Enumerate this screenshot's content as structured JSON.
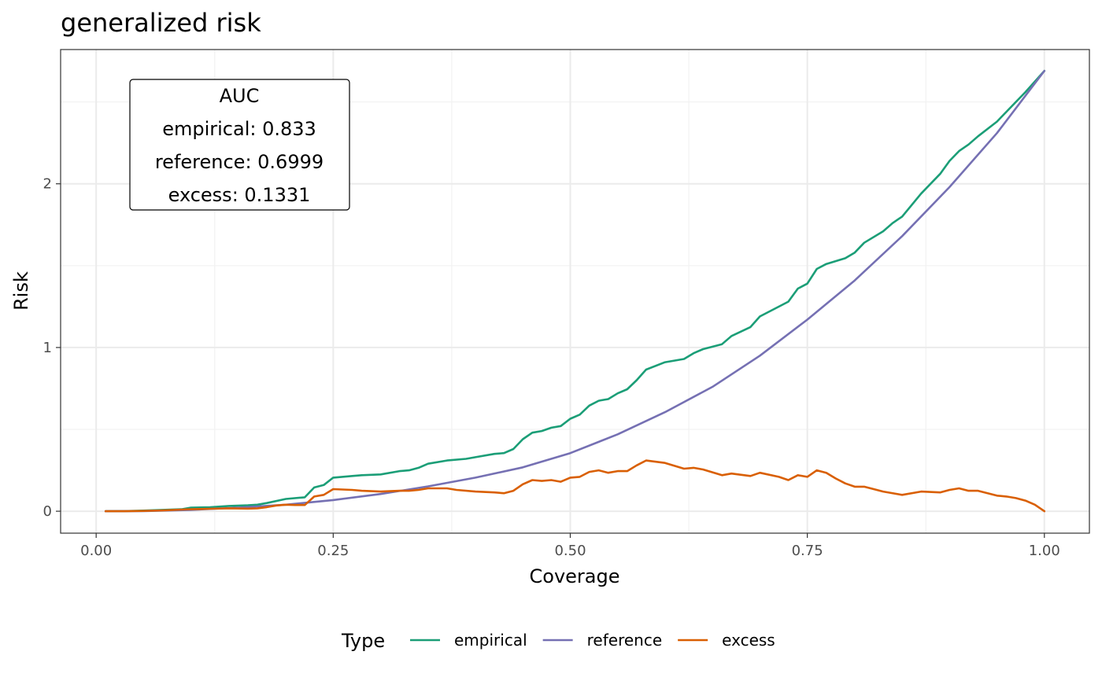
{
  "chart_data": {
    "type": "line",
    "title": "generalized risk",
    "xlabel": "Coverage",
    "ylabel": "Risk",
    "xlim": [
      -0.0375,
      1.0475
    ],
    "ylim": [
      -0.134,
      2.82
    ],
    "x_ticks": [
      0,
      0.25,
      0.5,
      0.75,
      1
    ],
    "x_tick_labels": [
      "0.00",
      "0.25",
      "0.50",
      "0.75",
      "1.00"
    ],
    "y_ticks": [
      0,
      1,
      2
    ],
    "y_tick_labels": [
      "0",
      "1",
      "2"
    ],
    "grid": true,
    "legend": {
      "title": "Type",
      "position": "bottom"
    },
    "annotation": {
      "lines": [
        "AUC",
        "empirical: 0.833",
        "reference: 0.6999",
        "excess: 0.1331"
      ]
    },
    "series": [
      {
        "name": "empirical",
        "color": "#1b9e77",
        "x": [
          0.01,
          0.03,
          0.05,
          0.07,
          0.09,
          0.1,
          0.12,
          0.14,
          0.16,
          0.17,
          0.18,
          0.2,
          0.22,
          0.23,
          0.24,
          0.25,
          0.27,
          0.28,
          0.3,
          0.32,
          0.33,
          0.34,
          0.35,
          0.37,
          0.39,
          0.4,
          0.42,
          0.43,
          0.44,
          0.45,
          0.46,
          0.47,
          0.48,
          0.49,
          0.5,
          0.51,
          0.52,
          0.53,
          0.54,
          0.55,
          0.56,
          0.57,
          0.58,
          0.6,
          0.62,
          0.63,
          0.64,
          0.66,
          0.67,
          0.69,
          0.7,
          0.72,
          0.73,
          0.74,
          0.75,
          0.76,
          0.77,
          0.79,
          0.8,
          0.81,
          0.83,
          0.84,
          0.85,
          0.87,
          0.89,
          0.9,
          0.91,
          0.92,
          0.93,
          0.95,
          0.96,
          0.98,
          1.0
        ],
        "y": [
          0,
          0.001,
          0.004,
          0.008,
          0.012,
          0.022,
          0.024,
          0.032,
          0.036,
          0.04,
          0.05,
          0.075,
          0.085,
          0.145,
          0.16,
          0.205,
          0.215,
          0.22,
          0.225,
          0.245,
          0.25,
          0.265,
          0.29,
          0.31,
          0.32,
          0.33,
          0.35,
          0.355,
          0.38,
          0.44,
          0.48,
          0.49,
          0.51,
          0.52,
          0.565,
          0.59,
          0.645,
          0.675,
          0.685,
          0.72,
          0.745,
          0.8,
          0.865,
          0.91,
          0.93,
          0.965,
          0.99,
          1.02,
          1.07,
          1.125,
          1.19,
          1.25,
          1.28,
          1.36,
          1.39,
          1.48,
          1.51,
          1.545,
          1.58,
          1.64,
          1.71,
          1.76,
          1.8,
          1.94,
          2.06,
          2.14,
          2.2,
          2.24,
          2.29,
          2.38,
          2.44,
          2.56,
          2.69
        ]
      },
      {
        "name": "reference",
        "color": "#7570b3",
        "x": [
          0.01,
          0.05,
          0.1,
          0.15,
          0.2,
          0.25,
          0.3,
          0.35,
          0.4,
          0.45,
          0.5,
          0.55,
          0.6,
          0.65,
          0.7,
          0.75,
          0.8,
          0.85,
          0.9,
          0.95,
          1.0
        ],
        "y": [
          0,
          0.001,
          0.008,
          0.022,
          0.04,
          0.068,
          0.105,
          0.152,
          0.205,
          0.268,
          0.355,
          0.47,
          0.605,
          0.76,
          0.95,
          1.17,
          1.41,
          1.68,
          1.98,
          2.31,
          2.69
        ]
      },
      {
        "name": "excess",
        "color": "#d95f02",
        "x": [
          0.01,
          0.03,
          0.05,
          0.07,
          0.09,
          0.1,
          0.12,
          0.14,
          0.16,
          0.17,
          0.18,
          0.19,
          0.2,
          0.21,
          0.22,
          0.23,
          0.24,
          0.25,
          0.27,
          0.28,
          0.3,
          0.32,
          0.33,
          0.34,
          0.35,
          0.37,
          0.38,
          0.4,
          0.42,
          0.43,
          0.44,
          0.45,
          0.46,
          0.47,
          0.48,
          0.49,
          0.5,
          0.51,
          0.52,
          0.53,
          0.54,
          0.55,
          0.56,
          0.57,
          0.58,
          0.6,
          0.62,
          0.63,
          0.64,
          0.66,
          0.67,
          0.69,
          0.7,
          0.72,
          0.73,
          0.74,
          0.75,
          0.76,
          0.77,
          0.78,
          0.79,
          0.8,
          0.81,
          0.82,
          0.83,
          0.85,
          0.87,
          0.89,
          0.9,
          0.91,
          0.92,
          0.93,
          0.95,
          0.96,
          0.97,
          0.98,
          0.99,
          1.0
        ],
        "y": [
          0,
          0,
          0.002,
          0.005,
          0.01,
          0.012,
          0.015,
          0.018,
          0.016,
          0.018,
          0.025,
          0.035,
          0.04,
          0.038,
          0.038,
          0.09,
          0.1,
          0.135,
          0.13,
          0.125,
          0.12,
          0.125,
          0.125,
          0.13,
          0.14,
          0.14,
          0.13,
          0.12,
          0.115,
          0.11,
          0.125,
          0.165,
          0.19,
          0.185,
          0.19,
          0.18,
          0.205,
          0.21,
          0.24,
          0.25,
          0.235,
          0.245,
          0.245,
          0.28,
          0.31,
          0.295,
          0.26,
          0.265,
          0.255,
          0.22,
          0.23,
          0.215,
          0.235,
          0.21,
          0.19,
          0.22,
          0.21,
          0.25,
          0.235,
          0.2,
          0.17,
          0.15,
          0.15,
          0.135,
          0.12,
          0.1,
          0.12,
          0.115,
          0.13,
          0.14,
          0.125,
          0.125,
          0.095,
          0.09,
          0.08,
          0.065,
          0.04,
          0.0
        ]
      }
    ]
  }
}
